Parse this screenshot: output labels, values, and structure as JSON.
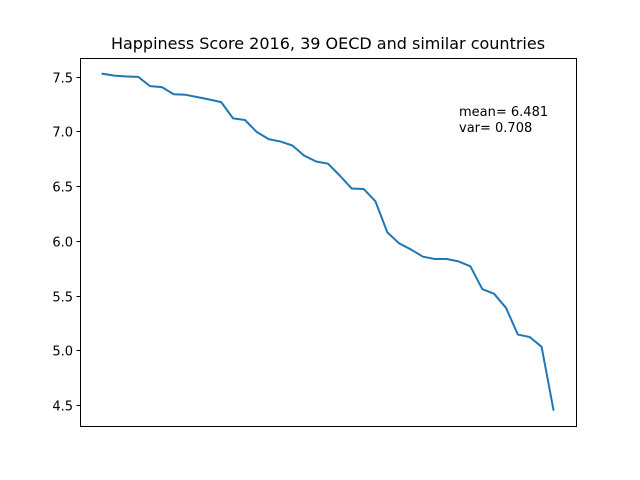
{
  "chart_data": {
    "type": "line",
    "title": "Happiness Score 2016, 39 OECD and similar countries",
    "xlabel": "",
    "ylabel": "",
    "x_ticks_shown": false,
    "ylim": [
      4.31,
      7.67
    ],
    "yticks": [
      4.5,
      5.0,
      5.5,
      6.0,
      6.5,
      7.0,
      7.5
    ],
    "ytick_labels": [
      "4.5",
      "5.0",
      "5.5",
      "6.0",
      "6.5",
      "7.0",
      "7.5"
    ],
    "grid": false,
    "line_color": "#1f77b4",
    "annotations": [
      "mean= 6.481",
      "var= 0.708"
    ],
    "series": [
      {
        "values": [
          7.526,
          7.509,
          7.501,
          7.498,
          7.413,
          7.404,
          7.339,
          7.334,
          7.313,
          7.291,
          7.267,
          7.119,
          7.104,
          6.994,
          6.929,
          6.907,
          6.871,
          6.778,
          6.725,
          6.705,
          6.596,
          6.478,
          6.474,
          6.361,
          6.078,
          5.977,
          5.921,
          5.856,
          5.835,
          5.835,
          5.813,
          5.768,
          5.56,
          5.517,
          5.389,
          5.145,
          5.123,
          5.033,
          4.459
        ]
      }
    ]
  }
}
